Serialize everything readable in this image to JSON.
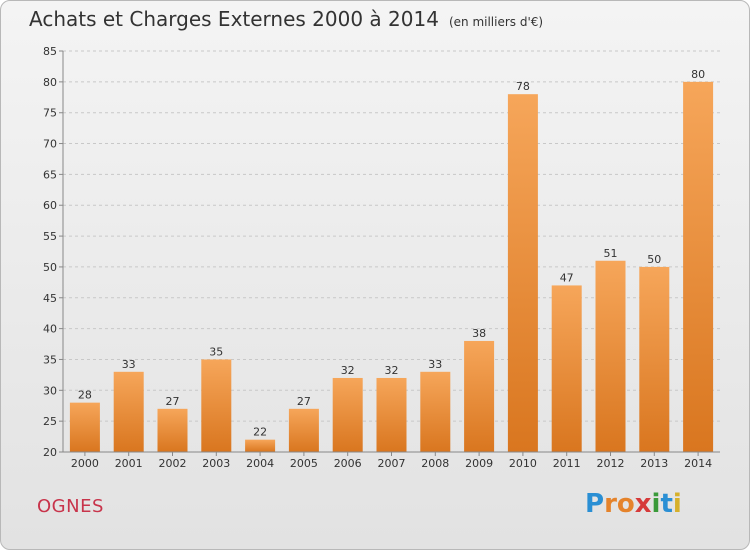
{
  "title": "Achats et Charges Externes 2000 à 2014",
  "unit": "(en milliers d'€)",
  "place": "OGNES",
  "logo": {
    "letters": [
      "P",
      "r",
      "o",
      "x",
      "i",
      "t",
      "i"
    ],
    "colors": [
      "#2a8fd4",
      "#e5832b",
      "#e5832b",
      "#d63a3a",
      "#3a9a3a",
      "#2a8fd4",
      "#d6b02a"
    ]
  },
  "colors": {
    "bar_light": "#f6a65a",
    "bar_dark": "#d9761f",
    "grid": "#c8c8c8",
    "axis": "#888888"
  },
  "chart_data": {
    "type": "bar",
    "title": "Achats et Charges Externes 2000 à 2014",
    "categories": [
      "2000",
      "2001",
      "2002",
      "2003",
      "2004",
      "2005",
      "2006",
      "2007",
      "2008",
      "2009",
      "2010",
      "2011",
      "2012",
      "2013",
      "2014"
    ],
    "values": [
      28,
      33,
      27,
      35,
      22,
      27,
      32,
      32,
      33,
      38,
      78,
      47,
      51,
      50,
      80
    ],
    "ylim": [
      20,
      85
    ],
    "yticks": [
      20,
      25,
      30,
      35,
      40,
      45,
      50,
      55,
      60,
      65,
      70,
      75,
      80,
      85
    ],
    "grid": true
  }
}
